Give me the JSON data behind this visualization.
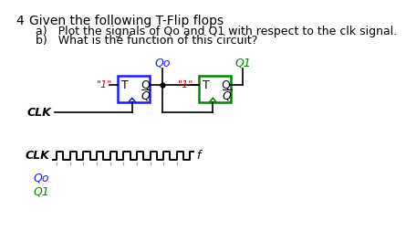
{
  "title_number": "4",
  "title_text": "Given the following T-Flip flops",
  "question_a": "a)   Plot the signals of Qo and Q1 with respect to the clk signal.",
  "question_b": "b)   What is the function of this circuit?",
  "clk_label": "CLK",
  "clk_signal_label": "CLK",
  "f_label": "f",
  "q0_label": "Qo",
  "q1_label": "Q1",
  "ff1_color": "#1a1aff",
  "ff2_color": "#008800",
  "one_color": "#cc0000",
  "text_color": "#000000",
  "bg_color": "#ffffff",
  "clk_waveform_color": "#000000",
  "clk_tick_color": "#aaaaaa"
}
